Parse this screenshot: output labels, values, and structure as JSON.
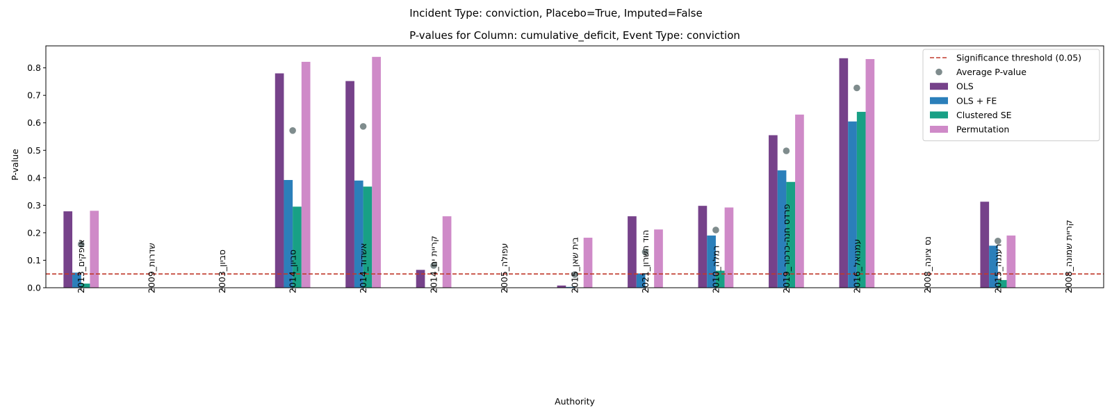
{
  "chart_data": {
    "type": "bar",
    "suptitle": "Incident Type: conviction, Placebo=True, Imputed=False",
    "title": "P-values for Column: cumulative_deficit, Event Type: conviction",
    "xlabel": "Authority",
    "ylabel": "P-value",
    "ylim": [
      0,
      0.88
    ],
    "yticks": [
      "0.0",
      "0.1",
      "0.2",
      "0.3",
      "0.4",
      "0.5",
      "0.6",
      "0.7",
      "0.8"
    ],
    "legend_position": "top-right",
    "categories": [
      "אופקים_2013",
      "שדרות_2009",
      "סביון_2003",
      "סביון_2014",
      "אשדוד_2014",
      "קריית ים_2014",
      "עפולה_2005",
      "בית שאן_2015",
      "הוד השרון_2021",
      "רמלה_2010",
      "פרדס חנה-כרכור_2019",
      "עמנואל_2016",
      "נס ציונה_2008",
      "רעננה_2015",
      "קריית שמונה_2008"
    ],
    "series": [
      {
        "name": "OLS",
        "color": "#76428a",
        "values": [
          0.278,
          0,
          0,
          0.78,
          0.752,
          0.065,
          0,
          0.008,
          0.26,
          0.298,
          0.555,
          0.835,
          0,
          0.313,
          0
        ]
      },
      {
        "name": "OLS + FE",
        "color": "#2b7fba",
        "values": [
          0.055,
          0,
          0,
          0.392,
          0.39,
          0,
          0,
          0.003,
          0.052,
          0.19,
          0.427,
          0.605,
          0,
          0.153,
          0
        ]
      },
      {
        "name": "Clustered SE",
        "color": "#18a085",
        "values": [
          0.015,
          0,
          0,
          0.295,
          0.368,
          0,
          0,
          0,
          0,
          0.062,
          0.385,
          0.64,
          0,
          0.028,
          0
        ]
      },
      {
        "name": "Permutation",
        "color": "#cf8ac8",
        "values": [
          0.28,
          0,
          0,
          0.822,
          0,
          0.26,
          0,
          0.182,
          0.212,
          0.292,
          0.63,
          0.832,
          0,
          0.19,
          0
        ]
      }
    ],
    "average_series": {
      "name": "Average P-value",
      "color": "#7f8c8d",
      "values": [
        0.158,
        null,
        null,
        0.572,
        0.587,
        0.081,
        null,
        0.048,
        0.13,
        0.21,
        0.498,
        0.727,
        null,
        0.17,
        null
      ]
    },
    "threshold": {
      "name": "Significance threshold (0.05)",
      "value": 0.05,
      "color": "#c0392b"
    },
    "permutation_fix": {
      "index": 4,
      "value": 0.84
    }
  }
}
